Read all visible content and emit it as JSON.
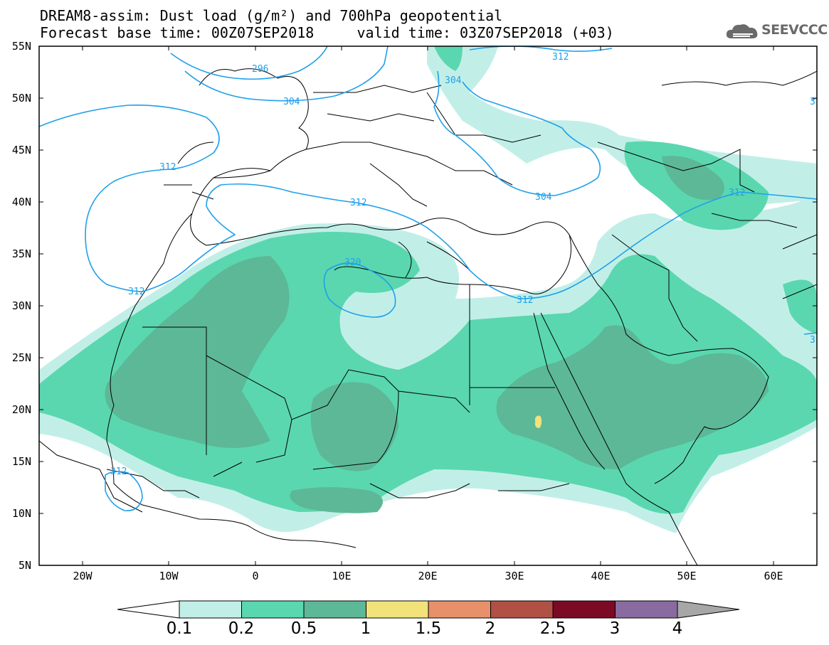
{
  "header": {
    "title_line1": "DREAM8-assim: Dust load (g/m²) and 700hPa geopotential",
    "title_line2": "Forecast base time: 00Z07SEP2018     valid time: 03Z07SEP2018 (+03)"
  },
  "logo": {
    "text": "SEEVCCC",
    "icon": "cloud-icon"
  },
  "axes": {
    "lat_labels": [
      "55N",
      "50N",
      "45N",
      "40N",
      "35N",
      "30N",
      "25N",
      "20N",
      "15N",
      "10N",
      "5N"
    ],
    "lon_labels": [
      "20W",
      "10W",
      "0",
      "10E",
      "20E",
      "30E",
      "40E",
      "50E",
      "60E"
    ]
  },
  "contours": {
    "labels": [
      "296",
      "304",
      "304",
      "312",
      "312",
      "312",
      "312",
      "312",
      "312",
      "304",
      "312",
      "312",
      "320",
      "312"
    ]
  },
  "colorbar": {
    "ticks": [
      "0.1",
      "0.2",
      "0.5",
      "1",
      "1.5",
      "2",
      "2.5",
      "3",
      "4"
    ],
    "colors": [
      "#c1efe8",
      "#5ad7ae",
      "#5db897",
      "#f1e27a",
      "#e8906a",
      "#b15146",
      "#7c0a25",
      "#896ba0"
    ],
    "under_color": "#ffffff",
    "over_color": "#a7a7a7"
  },
  "colors": {
    "land_border": "#000000",
    "contour_line": "#1fa0ea",
    "contour_label": "#1fa0ea",
    "dust_levels": [
      "#c1efe8",
      "#5ad7ae",
      "#5db897",
      "#f1e27a"
    ]
  }
}
